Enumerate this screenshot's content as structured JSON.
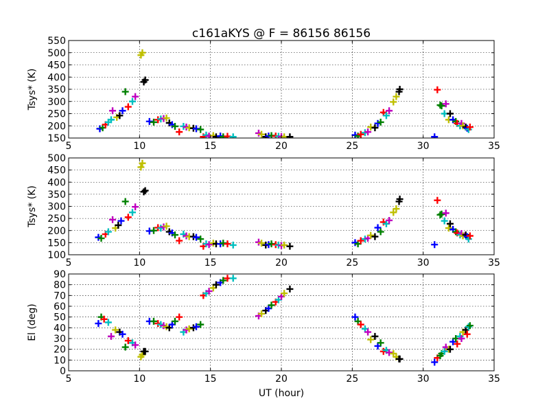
{
  "figure": {
    "title": "c161aKYS @ F = 86156 86156",
    "xlabel": "UT (hour)"
  },
  "marker_colors": [
    "#0000ff",
    "#008000",
    "#ff0000",
    "#00bfbf",
    "#bf00bf",
    "#bfbf00",
    "#000000"
  ],
  "chart_data": [
    {
      "type": "scatter",
      "ylabel": "Tsys* (K)",
      "xlim": [
        5,
        35
      ],
      "ylim": [
        150,
        550
      ],
      "xticks": [
        5,
        10,
        15,
        20,
        25,
        30,
        35
      ],
      "yticks": [
        150,
        200,
        250,
        300,
        350,
        400,
        450,
        500,
        550
      ],
      "grid": true,
      "points": [
        [
          7.2,
          188,
          0
        ],
        [
          7.4,
          192,
          1
        ],
        [
          7.6,
          205,
          2
        ],
        [
          7.8,
          215,
          3
        ],
        [
          8.0,
          225,
          3
        ],
        [
          8.1,
          262,
          4
        ],
        [
          8.4,
          235,
          5
        ],
        [
          8.6,
          242,
          6
        ],
        [
          8.8,
          262,
          0
        ],
        [
          9.0,
          340,
          1
        ],
        [
          9.2,
          278,
          2
        ],
        [
          9.5,
          300,
          3
        ],
        [
          9.7,
          320,
          4
        ],
        [
          10.1,
          490,
          5
        ],
        [
          10.2,
          500,
          5
        ],
        [
          10.3,
          380,
          6
        ],
        [
          10.4,
          388,
          6
        ],
        [
          10.7,
          218,
          0
        ],
        [
          11.0,
          215,
          1
        ],
        [
          11.3,
          225,
          2
        ],
        [
          11.5,
          228,
          3
        ],
        [
          11.7,
          230,
          4
        ],
        [
          11.9,
          232,
          5
        ],
        [
          12.1,
          212,
          6
        ],
        [
          12.3,
          205,
          0
        ],
        [
          12.5,
          198,
          1
        ],
        [
          12.8,
          175,
          2
        ],
        [
          13.1,
          198,
          3
        ],
        [
          13.3,
          195,
          4
        ],
        [
          13.5,
          192,
          5
        ],
        [
          13.8,
          190,
          6
        ],
        [
          14.0,
          188,
          0
        ],
        [
          14.3,
          185,
          1
        ],
        [
          14.5,
          155,
          2
        ],
        [
          14.7,
          162,
          3
        ],
        [
          14.9,
          158,
          4
        ],
        [
          15.2,
          160,
          5
        ],
        [
          15.4,
          155,
          6
        ],
        [
          15.7,
          158,
          0
        ],
        [
          15.9,
          155,
          1
        ],
        [
          16.2,
          157,
          2
        ],
        [
          16.6,
          155,
          3
        ],
        [
          18.4,
          170,
          4
        ],
        [
          18.6,
          165,
          5
        ],
        [
          18.9,
          155,
          6
        ],
        [
          19.1,
          158,
          0
        ],
        [
          19.3,
          160,
          1
        ],
        [
          19.6,
          158,
          2
        ],
        [
          19.8,
          157,
          3
        ],
        [
          20.0,
          156,
          4
        ],
        [
          20.2,
          155,
          5
        ],
        [
          20.6,
          155,
          6
        ],
        [
          25.2,
          162,
          0
        ],
        [
          25.4,
          158,
          1
        ],
        [
          25.6,
          165,
          2
        ],
        [
          25.9,
          172,
          3
        ],
        [
          26.1,
          175,
          4
        ],
        [
          26.3,
          195,
          5
        ],
        [
          26.6,
          192,
          6
        ],
        [
          26.8,
          210,
          0
        ],
        [
          27.0,
          215,
          1
        ],
        [
          27.2,
          255,
          2
        ],
        [
          27.4,
          242,
          3
        ],
        [
          27.6,
          262,
          4
        ],
        [
          27.9,
          298,
          5
        ],
        [
          28.1,
          320,
          5
        ],
        [
          28.3,
          340,
          6
        ],
        [
          28.35,
          350,
          6
        ],
        [
          30.8,
          155,
          0
        ],
        [
          31.0,
          348,
          2
        ],
        [
          31.2,
          285,
          1
        ],
        [
          31.3,
          282,
          1
        ],
        [
          31.5,
          250,
          3
        ],
        [
          31.6,
          290,
          4
        ],
        [
          31.8,
          225,
          5
        ],
        [
          31.9,
          250,
          6
        ],
        [
          32.1,
          225,
          0
        ],
        [
          32.3,
          218,
          1
        ],
        [
          32.4,
          210,
          2
        ],
        [
          32.6,
          200,
          3
        ],
        [
          32.7,
          210,
          4
        ],
        [
          32.8,
          200,
          5
        ],
        [
          33.0,
          195,
          6
        ],
        [
          33.1,
          190,
          0
        ],
        [
          33.2,
          185,
          3
        ],
        [
          33.3,
          195,
          2
        ]
      ]
    },
    {
      "type": "scatter",
      "ylabel": "Tsys* (K)",
      "xlim": [
        5,
        35
      ],
      "ylim": [
        100,
        500
      ],
      "xticks": [
        5,
        10,
        15,
        20,
        25,
        30,
        35
      ],
      "yticks": [
        100,
        150,
        200,
        250,
        300,
        350,
        400,
        450,
        500
      ],
      "grid": true,
      "points": [
        [
          7.1,
          172,
          0
        ],
        [
          7.3,
          168,
          1
        ],
        [
          7.6,
          185,
          2
        ],
        [
          7.8,
          195,
          3
        ],
        [
          8.1,
          245,
          4
        ],
        [
          8.3,
          210,
          5
        ],
        [
          8.5,
          222,
          6
        ],
        [
          8.7,
          240,
          0
        ],
        [
          9.0,
          320,
          1
        ],
        [
          9.2,
          255,
          2
        ],
        [
          9.5,
          275,
          3
        ],
        [
          9.7,
          298,
          4
        ],
        [
          10.1,
          462,
          5
        ],
        [
          10.2,
          478,
          5
        ],
        [
          10.3,
          360,
          6
        ],
        [
          10.4,
          365,
          6
        ],
        [
          10.7,
          198,
          0
        ],
        [
          11.0,
          200,
          1
        ],
        [
          11.3,
          212,
          2
        ],
        [
          11.5,
          210,
          3
        ],
        [
          11.7,
          215,
          4
        ],
        [
          11.9,
          218,
          5
        ],
        [
          12.1,
          195,
          6
        ],
        [
          12.3,
          190,
          0
        ],
        [
          12.5,
          182,
          1
        ],
        [
          12.8,
          158,
          2
        ],
        [
          13.1,
          185,
          3
        ],
        [
          13.3,
          178,
          4
        ],
        [
          13.5,
          175,
          5
        ],
        [
          13.8,
          175,
          6
        ],
        [
          14.0,
          172,
          0
        ],
        [
          14.3,
          165,
          1
        ],
        [
          14.5,
          135,
          2
        ],
        [
          14.7,
          145,
          3
        ],
        [
          14.9,
          142,
          4
        ],
        [
          15.2,
          148,
          5
        ],
        [
          15.4,
          145,
          6
        ],
        [
          15.7,
          145,
          0
        ],
        [
          15.9,
          148,
          1
        ],
        [
          16.2,
          145,
          2
        ],
        [
          16.6,
          140,
          3
        ],
        [
          18.4,
          152,
          4
        ],
        [
          18.6,
          148,
          5
        ],
        [
          18.9,
          140,
          6
        ],
        [
          19.1,
          142,
          0
        ],
        [
          19.3,
          145,
          1
        ],
        [
          19.6,
          142,
          2
        ],
        [
          19.8,
          140,
          3
        ],
        [
          20.0,
          138,
          4
        ],
        [
          20.2,
          140,
          5
        ],
        [
          20.6,
          135,
          6
        ],
        [
          25.2,
          150,
          0
        ],
        [
          25.4,
          145,
          1
        ],
        [
          25.6,
          158,
          2
        ],
        [
          25.9,
          165,
          3
        ],
        [
          26.1,
          168,
          4
        ],
        [
          26.3,
          180,
          5
        ],
        [
          26.6,
          175,
          6
        ],
        [
          26.8,
          212,
          0
        ],
        [
          27.0,
          195,
          1
        ],
        [
          27.2,
          235,
          2
        ],
        [
          27.4,
          228,
          3
        ],
        [
          27.6,
          242,
          4
        ],
        [
          27.9,
          275,
          5
        ],
        [
          28.1,
          290,
          5
        ],
        [
          28.3,
          320,
          6
        ],
        [
          28.35,
          330,
          6
        ],
        [
          30.8,
          142,
          0
        ],
        [
          31.0,
          325,
          2
        ],
        [
          31.2,
          265,
          1
        ],
        [
          31.3,
          268,
          1
        ],
        [
          31.5,
          240,
          3
        ],
        [
          31.6,
          272,
          4
        ],
        [
          31.8,
          210,
          5
        ],
        [
          31.9,
          228,
          6
        ],
        [
          32.1,
          205,
          0
        ],
        [
          32.3,
          195,
          1
        ],
        [
          32.4,
          190,
          2
        ],
        [
          32.6,
          182,
          3
        ],
        [
          32.7,
          188,
          4
        ],
        [
          32.8,
          178,
          5
        ],
        [
          33.0,
          182,
          6
        ],
        [
          33.1,
          175,
          0
        ],
        [
          33.2,
          165,
          3
        ],
        [
          33.3,
          178,
          2
        ]
      ]
    },
    {
      "type": "scatter",
      "ylabel": "El (deg)",
      "xlim": [
        5,
        35
      ],
      "ylim": [
        0,
        90
      ],
      "xticks": [
        5,
        10,
        15,
        20,
        25,
        30,
        35
      ],
      "yticks": [
        0,
        10,
        20,
        30,
        40,
        50,
        60,
        70,
        80,
        90
      ],
      "grid": true,
      "points": [
        [
          7.1,
          44,
          0
        ],
        [
          7.3,
          50,
          1
        ],
        [
          7.5,
          48,
          2
        ],
        [
          7.8,
          45,
          3
        ],
        [
          8.0,
          32,
          4
        ],
        [
          8.3,
          38,
          5
        ],
        [
          8.6,
          36,
          6
        ],
        [
          8.8,
          34,
          0
        ],
        [
          9.0,
          22,
          1
        ],
        [
          9.2,
          28,
          2
        ],
        [
          9.5,
          26,
          3
        ],
        [
          9.7,
          24,
          4
        ],
        [
          10.1,
          13,
          5
        ],
        [
          10.2,
          15,
          5
        ],
        [
          10.3,
          18,
          6
        ],
        [
          10.4,
          18,
          6
        ],
        [
          10.7,
          46,
          0
        ],
        [
          11.0,
          46,
          1
        ],
        [
          11.3,
          44,
          2
        ],
        [
          11.5,
          43,
          3
        ],
        [
          11.7,
          42,
          4
        ],
        [
          11.9,
          41,
          5
        ],
        [
          12.1,
          40,
          6
        ],
        [
          12.3,
          43,
          0
        ],
        [
          12.5,
          46,
          1
        ],
        [
          12.8,
          50,
          2
        ],
        [
          13.1,
          36,
          3
        ],
        [
          13.3,
          38,
          4
        ],
        [
          13.5,
          39,
          5
        ],
        [
          13.8,
          40,
          6
        ],
        [
          14.0,
          41,
          0
        ],
        [
          14.3,
          43,
          1
        ],
        [
          14.5,
          70,
          2
        ],
        [
          14.7,
          72,
          3
        ],
        [
          14.9,
          74,
          4
        ],
        [
          15.2,
          77,
          5
        ],
        [
          15.4,
          80,
          6
        ],
        [
          15.7,
          82,
          0
        ],
        [
          15.9,
          84,
          1
        ],
        [
          16.2,
          86,
          2
        ],
        [
          16.6,
          86,
          3
        ],
        [
          18.4,
          51,
          4
        ],
        [
          18.6,
          53,
          5
        ],
        [
          18.9,
          56,
          6
        ],
        [
          19.1,
          58,
          0
        ],
        [
          19.3,
          61,
          1
        ],
        [
          19.6,
          64,
          2
        ],
        [
          19.8,
          66,
          3
        ],
        [
          20.0,
          69,
          4
        ],
        [
          20.2,
          72,
          5
        ],
        [
          20.6,
          76,
          6
        ],
        [
          25.2,
          50,
          0
        ],
        [
          25.4,
          46,
          1
        ],
        [
          25.6,
          43,
          2
        ],
        [
          25.9,
          39,
          3
        ],
        [
          26.1,
          36,
          4
        ],
        [
          26.3,
          29,
          5
        ],
        [
          26.6,
          32,
          6
        ],
        [
          26.8,
          23,
          0
        ],
        [
          27.0,
          26,
          1
        ],
        [
          27.2,
          18,
          2
        ],
        [
          27.4,
          19,
          3
        ],
        [
          27.6,
          17,
          4
        ],
        [
          27.9,
          16,
          5
        ],
        [
          28.1,
          13,
          5
        ],
        [
          28.3,
          11,
          6
        ],
        [
          28.35,
          11,
          6
        ],
        [
          30.8,
          8,
          0
        ],
        [
          31.0,
          12,
          2
        ],
        [
          31.2,
          14,
          1
        ],
        [
          31.3,
          16,
          1
        ],
        [
          31.5,
          18,
          3
        ],
        [
          31.6,
          22,
          4
        ],
        [
          31.8,
          20,
          5
        ],
        [
          31.9,
          20,
          6
        ],
        [
          32.1,
          27,
          0
        ],
        [
          32.3,
          30,
          1
        ],
        [
          32.4,
          25,
          2
        ],
        [
          32.6,
          32,
          3
        ],
        [
          32.7,
          30,
          4
        ],
        [
          32.8,
          36,
          5
        ],
        [
          33.0,
          38,
          6
        ],
        [
          33.1,
          34,
          2
        ],
        [
          33.2,
          41,
          3
        ],
        [
          33.3,
          42,
          1
        ]
      ]
    }
  ]
}
